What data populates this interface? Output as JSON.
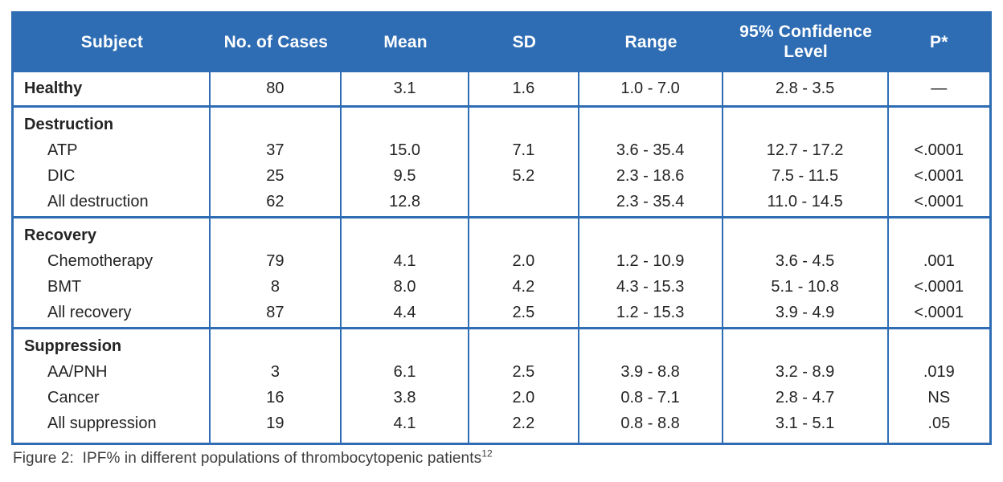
{
  "table": {
    "columns": [
      "Subject",
      "No. of Cases",
      "Mean",
      "SD",
      "Range",
      "95% Confidence Level",
      "P*"
    ],
    "sections": [
      {
        "rows": [
          {
            "label": "Healthy",
            "style": "header",
            "values": [
              "80",
              "3.1",
              "1.6",
              "1.0 - 7.0",
              "2.8 - 3.5",
              "—"
            ]
          }
        ]
      },
      {
        "group": "Destruction",
        "rows": [
          {
            "label": "ATP",
            "style": "sub",
            "values": [
              "37",
              "15.0",
              "7.1",
              "3.6 - 35.4",
              "12.7 - 17.2",
              "<.0001"
            ]
          },
          {
            "label": "DIC",
            "style": "sub",
            "values": [
              "25",
              "9.5",
              "5.2",
              "2.3 - 18.6",
              "7.5 - 11.5",
              "<.0001"
            ]
          },
          {
            "label": "All destruction",
            "style": "sub",
            "values": [
              "62",
              "12.8",
              "",
              "2.3 - 35.4",
              "11.0 - 14.5",
              "<.0001"
            ]
          }
        ]
      },
      {
        "group": "Recovery",
        "rows": [
          {
            "label": "Chemotherapy",
            "style": "sub",
            "values": [
              "79",
              "4.1",
              "2.0",
              "1.2 - 10.9",
              "3.6 - 4.5",
              ".001"
            ]
          },
          {
            "label": "BMT",
            "style": "sub",
            "values": [
              "8",
              "8.0",
              "4.2",
              "4.3 - 15.3",
              "5.1 - 10.8",
              "<.0001"
            ]
          },
          {
            "label": "All recovery",
            "style": "sub",
            "values": [
              "87",
              "4.4",
              "2.5",
              "1.2 - 15.3",
              "3.9 - 4.9",
              "<.0001"
            ]
          }
        ]
      },
      {
        "group": "Suppression",
        "rows": [
          {
            "label": "AA/PNH",
            "style": "sub",
            "values": [
              "3",
              "6.1",
              "2.5",
              "3.9 - 8.8",
              "3.2 - 8.9",
              ".019"
            ]
          },
          {
            "label": "Cancer",
            "style": "sub",
            "values": [
              "16",
              "3.8",
              "2.0",
              "0.8 - 7.1",
              "2.8 - 4.7",
              "NS"
            ]
          },
          {
            "label": "All suppression",
            "style": "sub",
            "values": [
              "19",
              "4.1",
              "2.2",
              "0.8 - 8.8",
              "3.1 - 5.1",
              ".05"
            ]
          }
        ]
      }
    ]
  },
  "caption": {
    "text": "Figure 2:  IPF% in different populations of thrombocytopenic patients",
    "superscript": "12"
  },
  "colors": {
    "header_blue": "#2E6DB4",
    "border_blue": "#2E6DB4",
    "body_text": "#242424",
    "header_text": "#FFFFFF",
    "caption_text": "#3D3D3D"
  }
}
